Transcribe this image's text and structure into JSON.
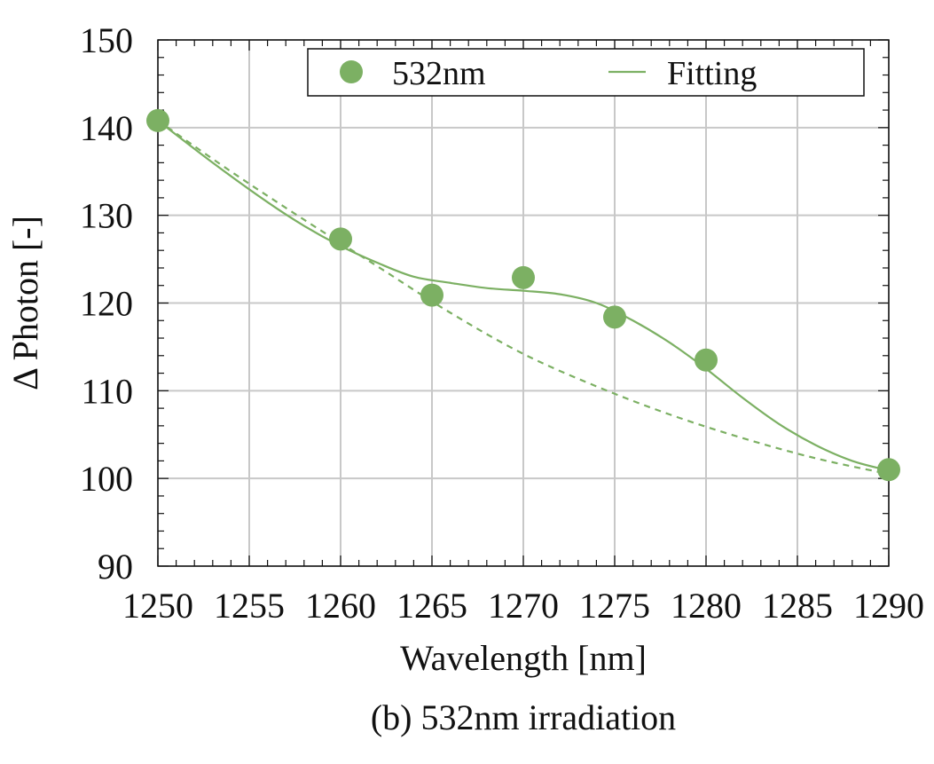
{
  "chart_data": {
    "type": "scatter",
    "caption": "(b) 532nm irradiation",
    "xlabel": "Wavelength [nm]",
    "ylabel": "Δ Photon [-]",
    "xlim": [
      1250,
      1290
    ],
    "ylim": [
      90,
      150
    ],
    "xticks": [
      1250,
      1255,
      1260,
      1265,
      1270,
      1275,
      1280,
      1285,
      1290
    ],
    "yticks": [
      90,
      100,
      110,
      120,
      130,
      140,
      150
    ],
    "grid": true,
    "legend_position": "top-right",
    "colors": {
      "series": "#7cb063"
    },
    "series": [
      {
        "name": "532nm",
        "kind": "points",
        "x": [
          1250,
          1260,
          1265,
          1270,
          1275,
          1280,
          1290
        ],
        "y": [
          140.8,
          127.3,
          120.9,
          122.9,
          118.4,
          113.5,
          101.0
        ]
      },
      {
        "name": "Fitting",
        "kind": "solid-line",
        "x": [
          1250,
          1253,
          1256,
          1258,
          1260,
          1262,
          1264,
          1266,
          1268,
          1270,
          1272,
          1274,
          1276,
          1278,
          1280,
          1282,
          1284,
          1286,
          1288,
          1290
        ],
        "y": [
          140.8,
          136.0,
          131.5,
          128.8,
          126.5,
          124.6,
          123.0,
          122.3,
          121.7,
          121.4,
          121.0,
          120.0,
          118.0,
          115.5,
          112.5,
          109.2,
          106.2,
          103.8,
          102.0,
          100.9
        ]
      },
      {
        "kind": "dashed-line",
        "x": [
          1250,
          1254,
          1258,
          1262,
          1266,
          1270,
          1274,
          1278,
          1282,
          1286,
          1290
        ],
        "y": [
          140.8,
          135.0,
          129.5,
          124.2,
          118.9,
          114.2,
          110.5,
          107.3,
          104.6,
          102.3,
          100.5
        ]
      }
    ]
  }
}
